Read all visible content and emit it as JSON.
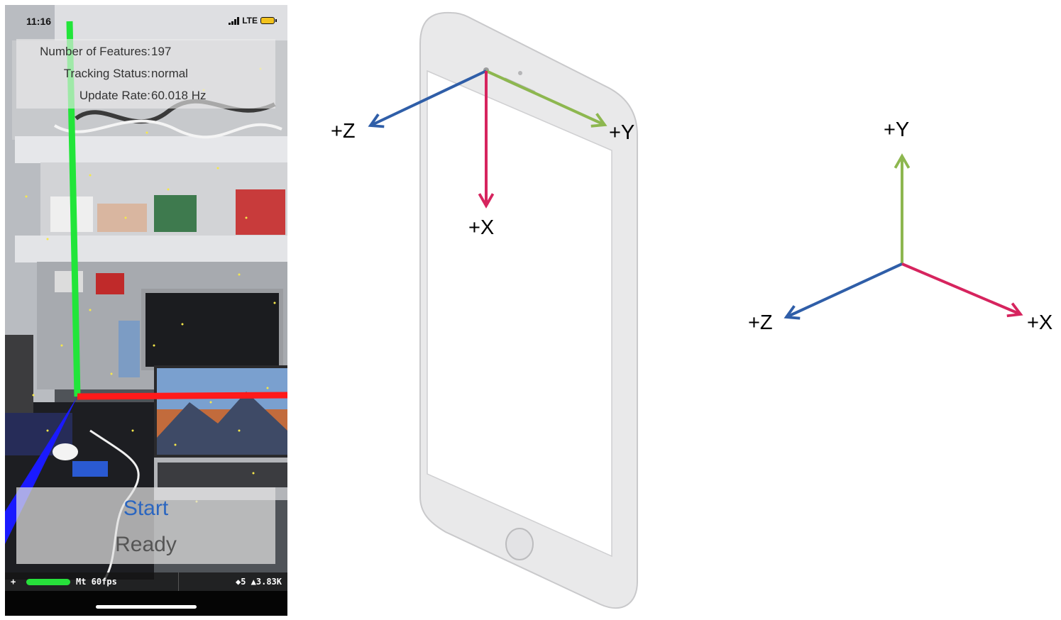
{
  "phone_screenshot": {
    "status_bar": {
      "time": "11:16",
      "network": "LTE"
    },
    "info_panel": {
      "rows": [
        {
          "label": "Number of Features:",
          "value": "197"
        },
        {
          "label": "Tracking Status:",
          "value": "normal"
        },
        {
          "label": "Update Rate:",
          "value": "60.018 Hz"
        }
      ]
    },
    "start_button": "Start",
    "status_label": "Ready",
    "stats_bar": {
      "left_symbol": "+",
      "fps_text": "Mt 60fps",
      "right_text": "◆5 ▲3.83K"
    },
    "ar_axes_colors": {
      "x": "#ff1a1a",
      "y": "#22e53a",
      "z": "#1a1aff"
    }
  },
  "device_diagram": {
    "axis_labels": {
      "z": "+Z",
      "y": "+Y",
      "x": "+X"
    },
    "colors": {
      "x": "#d6245e",
      "y": "#8db74f",
      "z": "#2f5ea8"
    }
  },
  "world_axes_diagram": {
    "axis_labels": {
      "y": "+Y",
      "z": "+Z",
      "x": "+X"
    },
    "colors": {
      "x": "#d6245e",
      "y": "#8db74f",
      "z": "#2f5ea8"
    }
  }
}
